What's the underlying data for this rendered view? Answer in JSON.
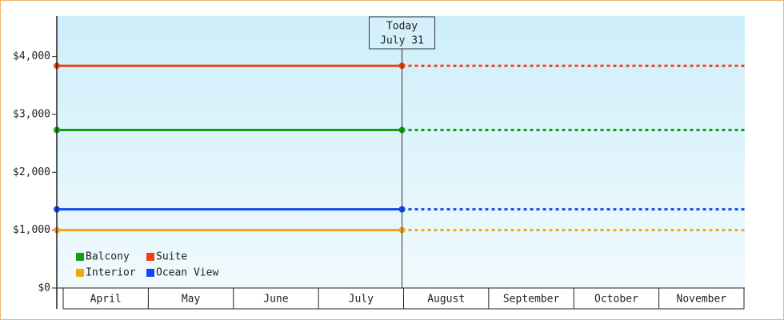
{
  "chart_data": {
    "type": "line",
    "categories": [
      "April",
      "May",
      "June",
      "July",
      "August",
      "September",
      "October",
      "November"
    ],
    "series": [
      {
        "name": "Balcony",
        "color": "#12a012",
        "value": 2730
      },
      {
        "name": "Suite",
        "color": "#f0400f",
        "value": 3840
      },
      {
        "name": "Interior",
        "color": "#f5a418",
        "value": 1000
      },
      {
        "name": "Ocean View",
        "color": "#1245f5",
        "value": 1360
      }
    ],
    "annotation": {
      "title": "Today",
      "date": "July 31"
    },
    "ylim": [
      0,
      4700
    ],
    "yticks": [
      {
        "value": 0,
        "label": "$0"
      },
      {
        "value": 1000,
        "label": "$1,000"
      },
      {
        "value": 2000,
        "label": "$2,000"
      },
      {
        "value": 3000,
        "label": "$3,000"
      },
      {
        "value": 4000,
        "label": "$4,000"
      }
    ],
    "legend": "bottom-left"
  }
}
